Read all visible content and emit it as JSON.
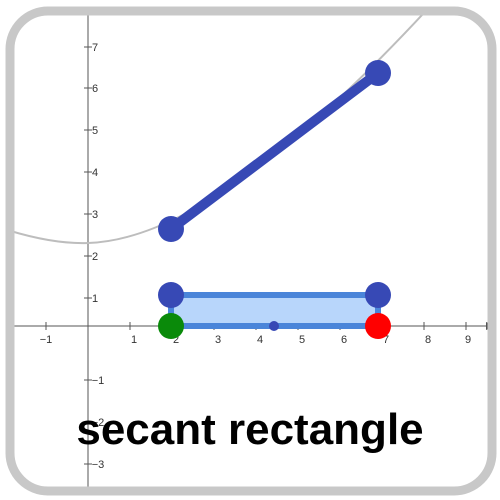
{
  "title": "secant rectangle",
  "axes": {
    "x_ticks": [
      "−1",
      "1",
      "2",
      "3",
      "4",
      "5",
      "6",
      "7",
      "8",
      "9"
    ],
    "y_ticks": [
      "7",
      "6",
      "5",
      "4",
      "3",
      "2",
      "1",
      "−1",
      "−2",
      "−3"
    ]
  },
  "colors": {
    "frame": "#c8c8c8",
    "curve": "#bdbdbd",
    "secant": "#3749b5",
    "rect_stroke": "#4a85d9",
    "rect_fill": "#b8d6fb",
    "point_left": "#0a8a0a",
    "point_right": "#ff0000"
  }
}
